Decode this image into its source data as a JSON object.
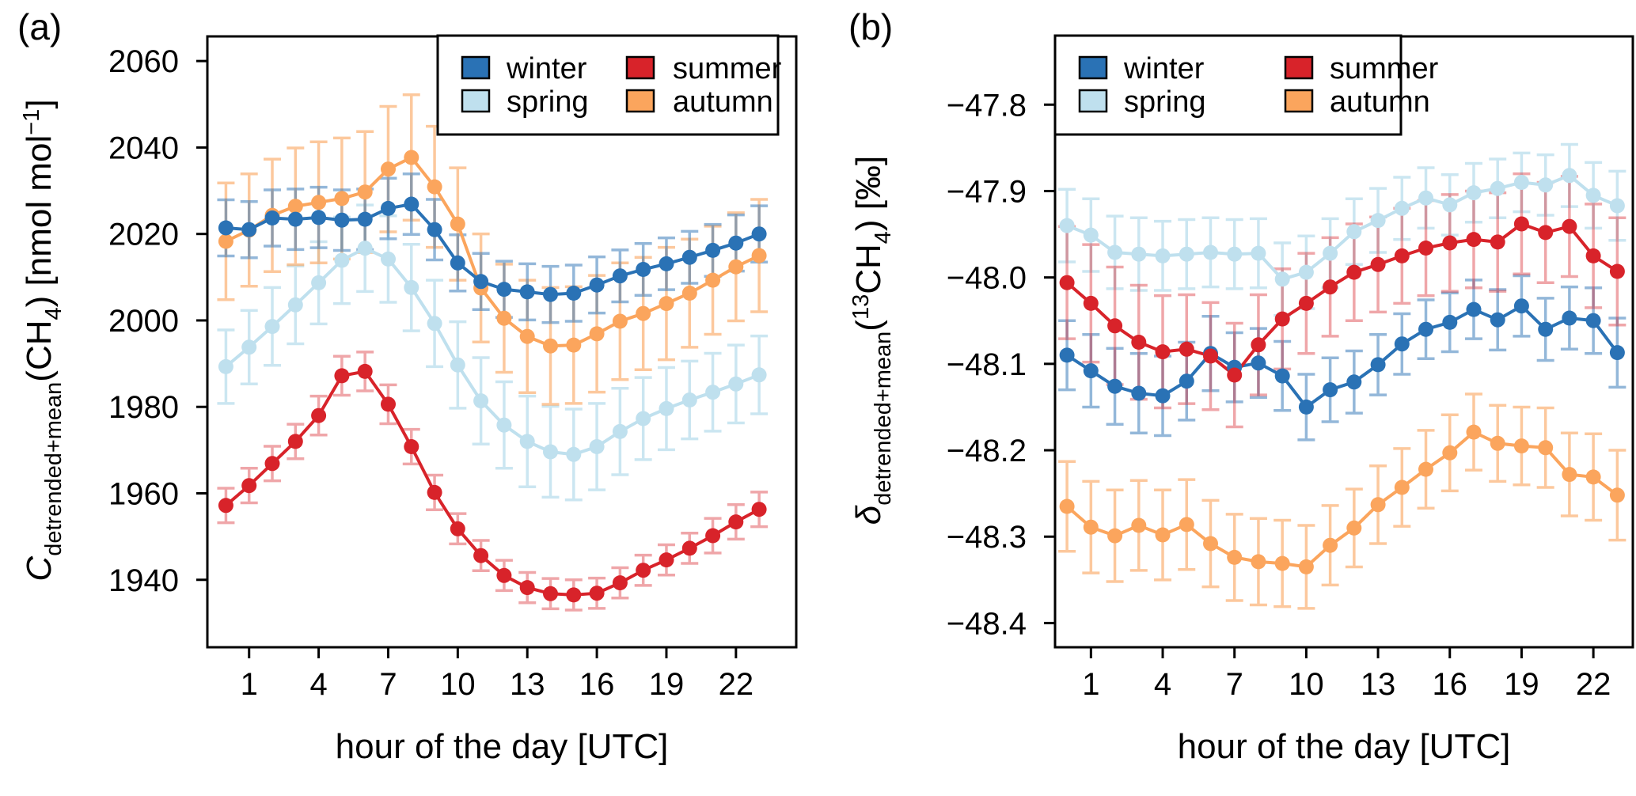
{
  "figure": {
    "background": "#ffffff",
    "axis_color": "#000000",
    "colors": {
      "winter": "#2A72B5",
      "spring": "#BFE0EE",
      "summer": "#D8232A",
      "autumn": "#FBA55D"
    },
    "legend_labels": [
      "winter",
      "spring",
      "summer",
      "autumn"
    ]
  },
  "chart_data": [
    {
      "id": "a",
      "type": "line",
      "panel_label": "(a)",
      "xlabel": "hour of the day [UTC]",
      "ylabel": "C_detrended+mean(CH4) [nmol mol−1]",
      "ylabel_segments": [
        {
          "t": "C",
          "s": "i"
        },
        {
          "t": "detrended+mean",
          "s": "sub"
        },
        {
          "t": "(CH",
          "s": "n"
        },
        {
          "t": "4",
          "s": "sub"
        },
        {
          "t": ") [nmol mol",
          "s": "n"
        },
        {
          "t": "−1",
          "s": "sup"
        },
        {
          "t": "]",
          "s": "n"
        }
      ],
      "x": [
        0,
        1,
        2,
        3,
        4,
        5,
        6,
        7,
        8,
        9,
        10,
        11,
        12,
        13,
        14,
        15,
        16,
        17,
        18,
        19,
        20,
        21,
        22,
        23
      ],
      "xticks": [
        {
          "v": 1,
          "label": "1"
        },
        {
          "v": 4,
          "label": "4"
        },
        {
          "v": 7,
          "label": "7"
        },
        {
          "v": 10,
          "label": "10"
        },
        {
          "v": 13,
          "label": "13"
        },
        {
          "v": 16,
          "label": "16"
        },
        {
          "v": 19,
          "label": "19"
        },
        {
          "v": 22,
          "label": "22"
        }
      ],
      "yticks": [
        {
          "v": 1940,
          "label": "1940"
        },
        {
          "v": 1960,
          "label": "1960"
        },
        {
          "v": 1980,
          "label": "1980"
        },
        {
          "v": 2000,
          "label": "2000"
        },
        {
          "v": 2020,
          "label": "2020"
        },
        {
          "v": 2040,
          "label": "2040"
        },
        {
          "v": 2060,
          "label": "2060"
        }
      ],
      "xlim": [
        -0.8,
        24.6
      ],
      "ylim": [
        1924.4,
        2065.7
      ],
      "legend_position": "top-right",
      "series": [
        {
          "name": "winter",
          "error_opacity": 0.5,
          "values": [
            2021.4,
            2021.0,
            2023.7,
            2023.4,
            2023.8,
            2023.2,
            2023.4,
            2025.9,
            2026.9,
            2021.0,
            2013.3,
            2009.0,
            2007.2,
            2006.6,
            2006.0,
            2006.3,
            2008.2,
            2010.3,
            2011.8,
            2013.1,
            2014.6,
            2016.2,
            2017.9,
            2020.0
          ],
          "errors": [
            6.5,
            6.5,
            6.5,
            7,
            7,
            7,
            7,
            7,
            7,
            7,
            6.5,
            6.5,
            6.5,
            6.5,
            6.5,
            6.5,
            6.5,
            6,
            6,
            6,
            6,
            6,
            6.5,
            6.5
          ]
        },
        {
          "name": "spring",
          "error_opacity": 0.8,
          "values": [
            1989.3,
            1993.8,
            1998.6,
            2003.6,
            2008.7,
            2013.9,
            2016.7,
            2014.2,
            2007.6,
            1999.3,
            1989.7,
            1981.4,
            1975.8,
            1972.0,
            1969.6,
            1969.0,
            1970.8,
            1974.3,
            1977.3,
            1979.6,
            1981.6,
            1983.4,
            1985.3,
            1987.4
          ],
          "errors": [
            8.5,
            8.5,
            9,
            9,
            9.5,
            10,
            10,
            10,
            10,
            10,
            10,
            10,
            10,
            10.5,
            10.5,
            10.5,
            10,
            10,
            9.5,
            9.5,
            9,
            9,
            9,
            9
          ]
        },
        {
          "name": "summer",
          "error_opacity": 0.4,
          "values": [
            1957.2,
            1961.8,
            1966.9,
            1972.0,
            1978.0,
            1987.2,
            1988.2,
            1980.6,
            1970.8,
            1960.2,
            1951.8,
            1945.6,
            1941.0,
            1938.2,
            1936.8,
            1936.5,
            1936.9,
            1939.3,
            1942.2,
            1944.6,
            1947.3,
            1950.2,
            1953.4,
            1956.3
          ],
          "errors": [
            4,
            4,
            4,
            4,
            4.5,
            4.5,
            4.5,
            4.5,
            4,
            4,
            3.5,
            3.5,
            3.5,
            3.5,
            3.5,
            3.5,
            3.5,
            3.5,
            3.5,
            3.5,
            3.5,
            4,
            4,
            4
          ]
        },
        {
          "name": "autumn",
          "error_opacity": 0.6,
          "values": [
            2018.3,
            2020.9,
            2024.3,
            2026.4,
            2027.3,
            2028.2,
            2029.7,
            2035.0,
            2037.7,
            2030.9,
            2022.3,
            2007.5,
            2000.5,
            1996.3,
            1994.1,
            1994.3,
            1996.9,
            1999.8,
            2001.6,
            2003.9,
            2006.3,
            2009.3,
            2012.4,
            2015.0
          ],
          "errors": [
            13.5,
            13,
            13,
            13.5,
            14,
            14,
            14,
            14.5,
            14.5,
            14,
            13,
            12.5,
            12.5,
            13,
            13.5,
            13.5,
            13.5,
            13.5,
            13,
            13,
            12.5,
            12.5,
            12.5,
            13
          ]
        }
      ]
    },
    {
      "id": "b",
      "type": "line",
      "panel_label": "(b)",
      "xlabel": "hour of the day [UTC]",
      "ylabel": "δ_detrended+mean(13CH4) [‰]",
      "ylabel_segments": [
        {
          "t": "δ",
          "s": "i"
        },
        {
          "t": "detrended+mean",
          "s": "sub"
        },
        {
          "t": "(",
          "s": "n"
        },
        {
          "t": "13",
          "s": "sup"
        },
        {
          "t": "CH",
          "s": "n"
        },
        {
          "t": "4",
          "s": "sub"
        },
        {
          "t": ") [‰]",
          "s": "n"
        }
      ],
      "x": [
        0,
        1,
        2,
        3,
        4,
        5,
        6,
        7,
        8,
        9,
        10,
        11,
        12,
        13,
        14,
        15,
        16,
        17,
        18,
        19,
        20,
        21,
        22,
        23
      ],
      "xticks": [
        {
          "v": 1,
          "label": "1"
        },
        {
          "v": 4,
          "label": "4"
        },
        {
          "v": 7,
          "label": "7"
        },
        {
          "v": 10,
          "label": "10"
        },
        {
          "v": 13,
          "label": "13"
        },
        {
          "v": 16,
          "label": "16"
        },
        {
          "v": 19,
          "label": "19"
        },
        {
          "v": 22,
          "label": "22"
        }
      ],
      "yticks": [
        {
          "v": -48.4,
          "label": "−48.4"
        },
        {
          "v": -48.3,
          "label": "−48.3"
        },
        {
          "v": -48.2,
          "label": "−48.2"
        },
        {
          "v": -48.1,
          "label": "−48.1"
        },
        {
          "v": -48.0,
          "label": "−48.0"
        },
        {
          "v": -47.9,
          "label": "−47.9"
        },
        {
          "v": -47.8,
          "label": "−47.8"
        }
      ],
      "xlim": [
        -0.5,
        23.65
      ],
      "ylim": [
        -48.428,
        -47.721
      ],
      "legend_position": "top-left",
      "series": [
        {
          "name": "winter",
          "error_opacity": 0.5,
          "values": [
            -48.09,
            -48.108,
            -48.126,
            -48.134,
            -48.137,
            -48.12,
            -48.088,
            -48.104,
            -48.099,
            -48.114,
            -48.15,
            -48.13,
            -48.121,
            -48.101,
            -48.077,
            -48.06,
            -48.052,
            -48.037,
            -48.049,
            -48.033,
            -48.06,
            -48.047,
            -48.05,
            -48.087
          ],
          "errors": [
            0.04,
            0.042,
            0.044,
            0.046,
            0.046,
            0.045,
            0.043,
            0.04,
            0.04,
            0.04,
            0.038,
            0.037,
            0.036,
            0.035,
            0.035,
            0.034,
            0.034,
            0.034,
            0.035,
            0.035,
            0.036,
            0.036,
            0.038,
            0.04
          ]
        },
        {
          "name": "spring",
          "error_opacity": 0.8,
          "values": [
            -47.94,
            -47.951,
            -47.971,
            -47.973,
            -47.975,
            -47.973,
            -47.971,
            -47.973,
            -47.972,
            -48.002,
            -47.994,
            -47.972,
            -47.947,
            -47.934,
            -47.92,
            -47.908,
            -47.916,
            -47.902,
            -47.897,
            -47.89,
            -47.893,
            -47.882,
            -47.905,
            -47.917
          ],
          "errors": [
            0.042,
            0.042,
            0.042,
            0.042,
            0.04,
            0.04,
            0.04,
            0.04,
            0.04,
            0.042,
            0.042,
            0.04,
            0.038,
            0.037,
            0.036,
            0.035,
            0.035,
            0.034,
            0.034,
            0.034,
            0.035,
            0.036,
            0.038,
            0.04
          ]
        },
        {
          "name": "summer",
          "error_opacity": 0.4,
          "values": [
            -48.006,
            -48.03,
            -48.056,
            -48.075,
            -48.086,
            -48.083,
            -48.091,
            -48.113,
            -48.078,
            -48.048,
            -48.03,
            -48.011,
            -47.994,
            -47.985,
            -47.975,
            -47.966,
            -47.96,
            -47.956,
            -47.959,
            -47.938,
            -47.948,
            -47.941,
            -47.975,
            -47.993
          ],
          "errors": [
            0.065,
            0.068,
            0.068,
            0.066,
            0.065,
            0.063,
            0.062,
            0.06,
            0.058,
            0.058,
            0.058,
            0.057,
            0.056,
            0.055,
            0.055,
            0.055,
            0.056,
            0.056,
            0.057,
            0.058,
            0.058,
            0.058,
            0.06,
            0.062
          ]
        },
        {
          "name": "autumn",
          "error_opacity": 0.6,
          "values": [
            -48.265,
            -48.289,
            -48.299,
            -48.287,
            -48.298,
            -48.286,
            -48.308,
            -48.324,
            -48.329,
            -48.331,
            -48.335,
            -48.31,
            -48.29,
            -48.263,
            -48.243,
            -48.222,
            -48.203,
            -48.179,
            -48.192,
            -48.195,
            -48.197,
            -48.228,
            -48.231,
            -48.252
          ],
          "errors": [
            0.052,
            0.053,
            0.053,
            0.052,
            0.052,
            0.052,
            0.05,
            0.05,
            0.05,
            0.05,
            0.048,
            0.046,
            0.045,
            0.045,
            0.045,
            0.045,
            0.044,
            0.044,
            0.044,
            0.045,
            0.046,
            0.048,
            0.05,
            0.052
          ]
        }
      ]
    }
  ]
}
